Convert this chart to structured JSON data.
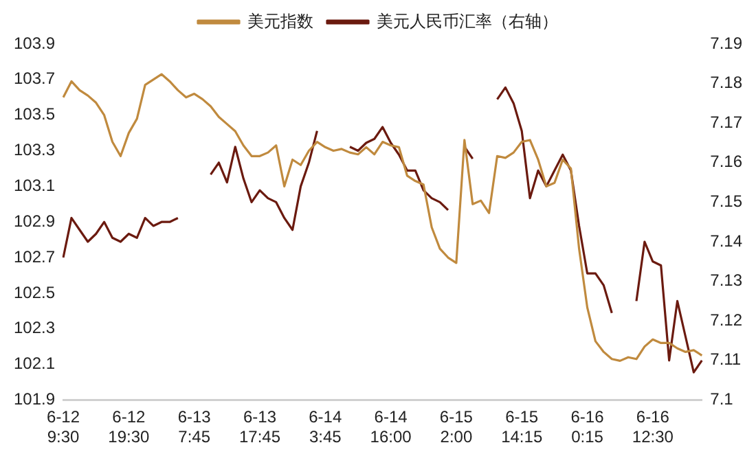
{
  "chart_data": {
    "type": "line",
    "categories": [
      "6-12 9:30",
      null,
      null,
      null,
      null,
      null,
      null,
      null,
      "6-12 19:30",
      null,
      null,
      null,
      null,
      null,
      null,
      null,
      "6-13 7:45",
      null,
      null,
      null,
      null,
      null,
      null,
      null,
      "6-13 17:45",
      null,
      null,
      null,
      null,
      null,
      null,
      null,
      "6-14 3:45",
      null,
      null,
      null,
      null,
      null,
      null,
      null,
      "6-14 16:00",
      null,
      null,
      null,
      null,
      null,
      null,
      null,
      "6-15 2:00",
      null,
      null,
      null,
      null,
      null,
      null,
      null,
      "6-15 14:15",
      null,
      null,
      null,
      null,
      null,
      null,
      null,
      "6-16 0:15",
      null,
      null,
      null,
      null,
      null,
      null,
      null,
      "6-16 12:30",
      null,
      null,
      null,
      null,
      null,
      null
    ],
    "series": [
      {
        "name": "美元指数",
        "color": "#c08a3e",
        "values": [
          103.6,
          103.69,
          103.64,
          103.61,
          103.57,
          103.5,
          103.35,
          103.27,
          103.4,
          103.48,
          103.67,
          103.7,
          103.73,
          103.69,
          103.64,
          103.6,
          103.62,
          103.59,
          103.55,
          103.49,
          103.45,
          103.41,
          103.33,
          103.27,
          103.27,
          103.29,
          103.33,
          103.1,
          103.25,
          103.22,
          103.3,
          103.35,
          103.32,
          103.3,
          103.31,
          103.29,
          103.28,
          103.32,
          103.28,
          103.35,
          103.33,
          103.32,
          103.16,
          103.13,
          103.11,
          102.87,
          102.75,
          102.7,
          102.67,
          103.36,
          103.0,
          103.02,
          102.95,
          103.27,
          103.26,
          103.29,
          103.35,
          103.36,
          103.25,
          103.1,
          103.12,
          103.25,
          103.2,
          102.75,
          102.42,
          102.23,
          102.17,
          102.13,
          102.12,
          102.14,
          102.13,
          102.2,
          102.24,
          102.22,
          102.22,
          102.19,
          102.17,
          102.18,
          102.15
        ]
      },
      {
        "name": "美元人民币汇率（右轴）",
        "color": "#6b1a0f",
        "axis": "y2",
        "values": [
          7.136,
          7.146,
          7.143,
          7.14,
          7.142,
          7.145,
          7.141,
          7.14,
          7.142,
          7.141,
          7.146,
          7.144,
          7.145,
          7.145,
          7.146,
          null,
          null,
          null,
          7.157,
          7.16,
          7.155,
          7.164,
          7.156,
          7.15,
          7.153,
          7.151,
          7.15,
          7.146,
          7.143,
          7.154,
          7.16,
          7.168,
          null,
          null,
          null,
          7.164,
          7.163,
          7.165,
          7.166,
          7.169,
          7.165,
          7.162,
          7.158,
          7.158,
          7.153,
          7.151,
          7.15,
          7.148,
          null,
          7.164,
          7.161,
          null,
          null,
          7.176,
          7.179,
          7.175,
          7.168,
          7.151,
          7.158,
          7.154,
          7.158,
          7.162,
          7.158,
          7.144,
          7.132,
          7.132,
          7.129,
          7.122,
          null,
          null,
          7.125,
          7.14,
          7.135,
          7.134,
          7.11,
          7.125,
          7.116,
          7.107,
          7.11
        ]
      }
    ],
    "ylim": [
      101.9,
      103.9
    ],
    "yticks": [
      101.9,
      102.1,
      102.3,
      102.5,
      102.7,
      102.9,
      103.1,
      103.3,
      103.5,
      103.7,
      103.9
    ],
    "y2lim": [
      7.1,
      7.19
    ],
    "y2ticks": [
      7.1,
      7.11,
      7.12,
      7.13,
      7.14,
      7.15,
      7.16,
      7.17,
      7.18,
      7.19
    ],
    "legend": "top",
    "grid": false,
    "marker": "none",
    "line_style": "solid"
  }
}
